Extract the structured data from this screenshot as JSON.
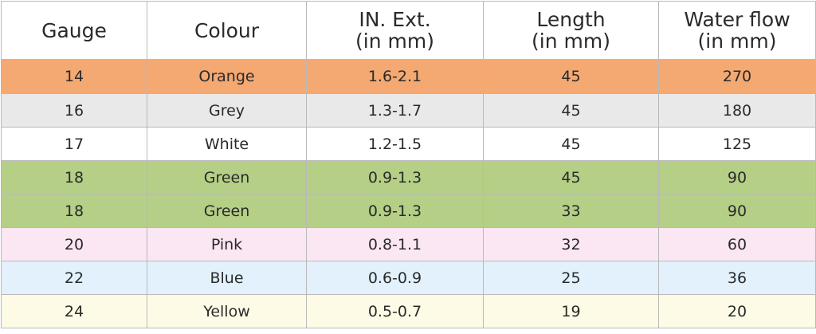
{
  "table": {
    "headers": [
      {
        "line1": "Gauge",
        "line2": ""
      },
      {
        "line1": "Colour",
        "line2": ""
      },
      {
        "line1": "IN. Ext.",
        "line2": "(in mm)"
      },
      {
        "line1": "Length",
        "line2": "(in mm)"
      },
      {
        "line1": "Water flow",
        "line2": "(in mm)"
      }
    ],
    "rows": [
      {
        "bg": "#f4a872",
        "cells": [
          "14",
          "Orange",
          "1.6-2.1",
          "45",
          "270"
        ]
      },
      {
        "bg": "#e9e9e9",
        "cells": [
          "16",
          "Grey",
          "1.3-1.7",
          "45",
          "180"
        ]
      },
      {
        "bg": "#ffffff",
        "cells": [
          "17",
          "White",
          "1.2-1.5",
          "45",
          "125"
        ]
      },
      {
        "bg": "#b5cf86",
        "cells": [
          "18",
          "Green",
          "0.9-1.3",
          "45",
          "90"
        ]
      },
      {
        "bg": "#b5cf86",
        "cells": [
          "18",
          "Green",
          "0.9-1.3",
          "33",
          "90"
        ]
      },
      {
        "bg": "#fbe6f3",
        "cells": [
          "20",
          "Pink",
          "0.8-1.1",
          "32",
          "60"
        ]
      },
      {
        "bg": "#e2f1fb",
        "cells": [
          "22",
          "Blue",
          "0.6-0.9",
          "25",
          "36"
        ]
      },
      {
        "bg": "#fdfbe6",
        "cells": [
          "24",
          "Yellow",
          "0.5-0.7",
          "19",
          "20"
        ]
      }
    ]
  }
}
